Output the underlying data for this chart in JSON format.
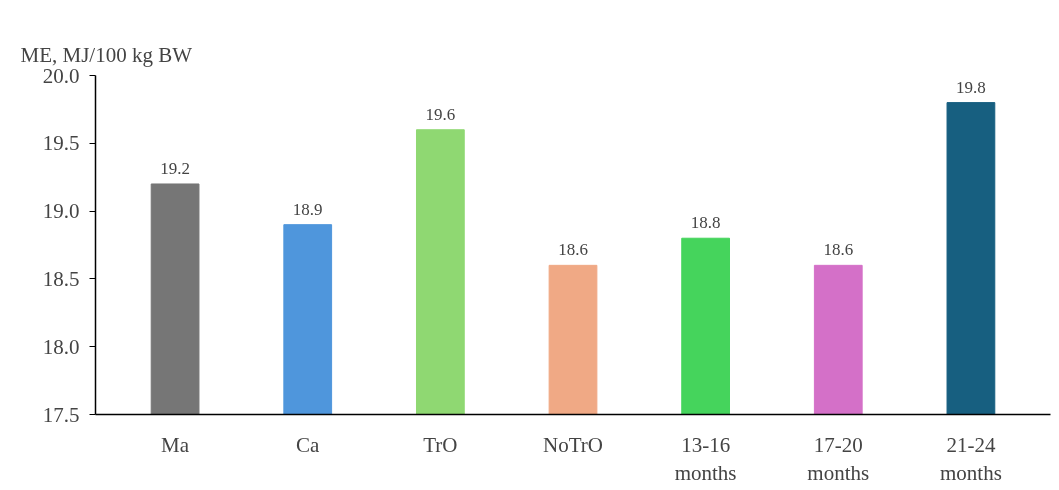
{
  "chart_data": {
    "type": "bar",
    "ylabel": "ME, MJ/100 kg BW",
    "categories": [
      "Ma",
      "Ca",
      "TrO",
      "NoTrO",
      "13-16 months",
      "17-20 months",
      "21-24 months"
    ],
    "values": [
      19.2,
      18.9,
      19.6,
      18.6,
      18.8,
      18.6,
      19.8
    ],
    "colors": [
      "#767676",
      "#4f96dc",
      "#8fd872",
      "#f0a985",
      "#45d45c",
      "#d470c8",
      "#175f80"
    ],
    "ylim": [
      17.5,
      20.0
    ],
    "yticks": [
      17.5,
      {
        "value": 18,
        "label": "18.0"
      },
      18.5,
      {
        "value": 19,
        "label": "19.0"
      },
      19.5,
      {
        "value": 20,
        "label": "20.0"
      }
    ],
    "data_labels": true,
    "grid": false
  }
}
